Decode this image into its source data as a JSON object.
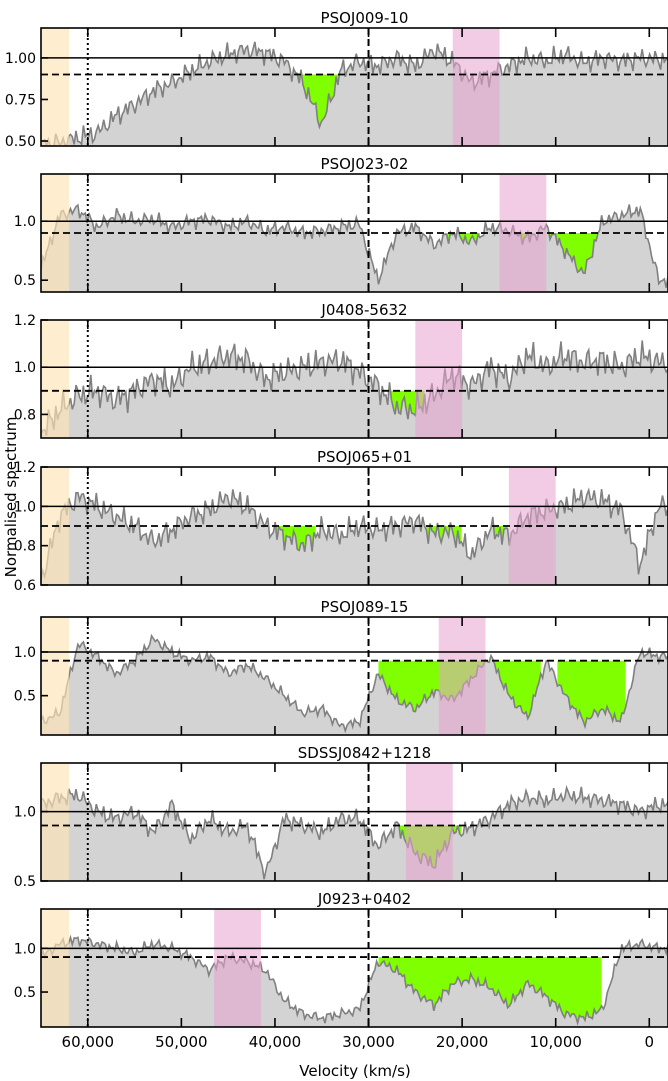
{
  "figure": {
    "ylabel": "Normalised spectrum",
    "xlabel": "Velocity (km/s)",
    "xlim": [
      65000,
      -2000
    ],
    "x_ticks": [
      60000,
      50000,
      40000,
      30000,
      20000,
      10000,
      0
    ],
    "x_tick_labels": [
      "60,000",
      "50,000",
      "40,000",
      "30,000",
      "20,000",
      "10,000",
      "0"
    ],
    "reference_lines": {
      "continuum": 1.0,
      "threshold": 0.9,
      "dashed_velocity": 30000,
      "dotted_velocity": 60000
    },
    "colors": {
      "spectrum_fill": "#d3d3d3",
      "spectrum_line": "#808080",
      "absorption": "#7fff00",
      "orange_band": "#ffe4b5",
      "pink_band": "#e7a3d0"
    }
  },
  "chart_data": [
    {
      "type": "area",
      "title": "PSOJ009-10",
      "ylim": [
        0.47,
        1.18
      ],
      "y_ticks": [
        0.5,
        0.75,
        1.0
      ],
      "y_tick_labels": [
        "0.50",
        "0.75",
        "1.00"
      ],
      "orange_band": [
        65000,
        62000
      ],
      "pink_band": [
        21000,
        16000
      ],
      "x": [
        65000,
        63000,
        61000,
        59000,
        57000,
        55000,
        53000,
        51000,
        49000,
        47000,
        45000,
        43000,
        41000,
        39000,
        37000,
        35000,
        33000,
        31000,
        29000,
        27000,
        25000,
        23000,
        21000,
        19000,
        17000,
        15000,
        13000,
        11000,
        9000,
        7000,
        5000,
        3000,
        1000,
        -1000
      ],
      "y": [
        0.47,
        0.49,
        0.52,
        0.55,
        0.65,
        0.72,
        0.8,
        0.85,
        0.92,
        0.98,
        1.02,
        1.05,
        1.03,
        0.98,
        0.85,
        0.6,
        0.92,
        0.98,
        0.95,
        1.0,
        0.95,
        1.05,
        0.98,
        0.85,
        0.9,
        0.95,
        1.0,
        0.98,
        1.02,
        0.97,
        1.0,
        0.98,
        1.0,
        0.99
      ],
      "absorption": [
        [
          38000,
          33000
        ]
      ]
    },
    {
      "type": "area",
      "title": "PSOJ023-02",
      "ylim": [
        0.4,
        1.4
      ],
      "y_ticks": [
        0.5,
        1.0
      ],
      "y_tick_labels": [
        "0.5",
        "1.0"
      ],
      "orange_band": [
        65000,
        62000
      ],
      "pink_band": [
        16000,
        11000
      ],
      "x": [
        65000,
        63000,
        61000,
        59000,
        57000,
        55000,
        53000,
        51000,
        49000,
        47000,
        45000,
        43000,
        41000,
        39000,
        37000,
        35000,
        33000,
        31000,
        29000,
        27000,
        25000,
        23000,
        21000,
        19000,
        17000,
        15000,
        13000,
        11000,
        9000,
        7000,
        5000,
        3000,
        1000,
        -1000
      ],
      "y": [
        0.6,
        1.05,
        1.1,
        0.95,
        1.05,
        1.0,
        1.02,
        0.95,
        1.0,
        1.02,
        0.95,
        1.0,
        0.92,
        0.95,
        0.9,
        0.92,
        0.95,
        0.98,
        0.5,
        0.9,
        0.95,
        0.8,
        0.9,
        0.82,
        0.95,
        0.92,
        0.85,
        0.95,
        0.75,
        0.55,
        1.0,
        1.05,
        1.1,
        0.5
      ],
      "absorption": [
        [
          22000,
          18000
        ],
        [
          16000,
          12000
        ],
        [
          11000,
          5000
        ]
      ]
    },
    {
      "type": "area",
      "title": "J0408-5632",
      "ylim": [
        0.7,
        1.2
      ],
      "y_ticks": [
        0.8,
        1.0,
        1.2
      ],
      "y_tick_labels": [
        "0.8",
        "1.0",
        "1.2"
      ],
      "orange_band": [
        65000,
        62000
      ],
      "pink_band": [
        25000,
        20000
      ],
      "x": [
        65000,
        63000,
        61000,
        59000,
        57000,
        55000,
        53000,
        51000,
        49000,
        47000,
        45000,
        43000,
        41000,
        39000,
        37000,
        35000,
        33000,
        31000,
        29000,
        27000,
        25000,
        23000,
        21000,
        19000,
        17000,
        15000,
        13000,
        11000,
        9000,
        7000,
        5000,
        3000,
        1000,
        -1000
      ],
      "y": [
        0.72,
        0.82,
        0.88,
        0.9,
        0.86,
        0.9,
        0.95,
        0.92,
        1.0,
        1.02,
        1.05,
        1.03,
        0.95,
        0.98,
        1.0,
        1.02,
        1.03,
        0.98,
        0.92,
        0.83,
        0.82,
        0.88,
        0.97,
        0.92,
        1.0,
        0.95,
        1.05,
        1.0,
        1.05,
        1.02,
        1.03,
        1.0,
        1.05,
        1.02
      ],
      "absorption": [
        [
          28000,
          24000
        ]
      ]
    },
    {
      "type": "area",
      "title": "PSOJ065+01",
      "ylim": [
        0.6,
        1.2
      ],
      "y_ticks": [
        0.6,
        0.8,
        1.0,
        1.2
      ],
      "y_tick_labels": [
        "0.6",
        "0.8",
        "1.0",
        "1.2"
      ],
      "orange_band": [
        65000,
        62000
      ],
      "pink_band": [
        15000,
        10000
      ],
      "x": [
        65000,
        63000,
        61000,
        59000,
        57000,
        55000,
        53000,
        51000,
        49000,
        47000,
        45000,
        43000,
        41000,
        39000,
        37000,
        35000,
        33000,
        31000,
        29000,
        27000,
        25000,
        23000,
        21000,
        19000,
        17000,
        15000,
        13000,
        11000,
        9000,
        7000,
        5000,
        3000,
        1000,
        -1000
      ],
      "y": [
        0.62,
        0.95,
        1.05,
        1.0,
        0.95,
        0.9,
        0.82,
        0.88,
        0.95,
        0.98,
        1.05,
        1.0,
        0.9,
        0.85,
        0.8,
        0.88,
        0.85,
        0.9,
        0.88,
        0.9,
        0.93,
        0.86,
        0.87,
        0.75,
        0.88,
        0.85,
        0.95,
        0.98,
        1.0,
        1.05,
        1.03,
        0.98,
        0.7,
        1.0
      ],
      "absorption": [
        [
          40000,
          35500
        ],
        [
          24000,
          20000
        ],
        [
          17000,
          15000
        ]
      ]
    },
    {
      "type": "area",
      "title": "PSOJ089-15",
      "ylim": [
        0.05,
        1.4
      ],
      "y_ticks": [
        0.5,
        1.0
      ],
      "y_tick_labels": [
        "0.5",
        "1.0"
      ],
      "orange_band": [
        65000,
        62000
      ],
      "pink_band": [
        22500,
        17500
      ],
      "x": [
        65000,
        63000,
        61000,
        59000,
        57000,
        55000,
        53000,
        51000,
        49000,
        47000,
        45000,
        43000,
        41000,
        39000,
        37000,
        35000,
        33000,
        31000,
        29000,
        27000,
        25000,
        23000,
        21000,
        19000,
        17000,
        15000,
        13000,
        11000,
        9000,
        7000,
        5000,
        3000,
        1000,
        -1000
      ],
      "y": [
        0.2,
        0.3,
        1.1,
        0.95,
        0.75,
        0.9,
        1.15,
        1.0,
        0.9,
        0.95,
        0.75,
        0.85,
        0.7,
        0.5,
        0.3,
        0.35,
        0.15,
        0.2,
        0.75,
        0.45,
        0.35,
        0.55,
        0.45,
        0.7,
        0.95,
        0.5,
        0.25,
        0.9,
        0.5,
        0.2,
        0.35,
        0.2,
        1.0,
        0.95
      ],
      "absorption": [
        [
          29000,
          11500
        ],
        [
          10000,
          2500
        ]
      ]
    },
    {
      "type": "area",
      "title": "SDSSJ0842+1218",
      "ylim": [
        0.5,
        1.35
      ],
      "y_ticks": [
        0.5,
        1.0
      ],
      "y_tick_labels": [
        "0.5",
        "1.0"
      ],
      "orange_band": [
        65000,
        62000
      ],
      "pink_band": [
        26000,
        21000
      ],
      "x": [
        65000,
        63000,
        61000,
        59000,
        57000,
        55000,
        53000,
        51000,
        49000,
        47000,
        45000,
        43000,
        41000,
        39000,
        37000,
        35000,
        33000,
        31000,
        29000,
        27000,
        25000,
        23000,
        21000,
        19000,
        17000,
        15000,
        13000,
        11000,
        9000,
        7000,
        5000,
        3000,
        1000,
        -1000
      ],
      "y": [
        1.05,
        1.1,
        1.12,
        1.0,
        0.95,
        1.0,
        0.85,
        1.05,
        0.8,
        0.95,
        0.85,
        0.9,
        0.55,
        0.95,
        0.9,
        0.85,
        0.95,
        0.95,
        0.75,
        0.9,
        0.7,
        0.62,
        0.85,
        0.88,
        0.95,
        1.05,
        1.1,
        1.08,
        1.12,
        1.1,
        1.08,
        1.05,
        1.0,
        1.05
      ],
      "absorption": [
        [
          27000,
          20000
        ]
      ]
    },
    {
      "type": "area",
      "title": "J0923+0402",
      "ylim": [
        0.1,
        1.45
      ],
      "y_ticks": [
        0.5,
        1.0
      ],
      "y_tick_labels": [
        "0.5",
        "1.0"
      ],
      "orange_band": [
        65000,
        62000
      ],
      "pink_band": [
        46500,
        41500
      ],
      "x": [
        65000,
        63000,
        61000,
        59000,
        57000,
        55000,
        53000,
        51000,
        49000,
        47000,
        45000,
        43000,
        41000,
        39000,
        37000,
        35000,
        33000,
        31000,
        29000,
        27000,
        25000,
        23000,
        21000,
        19000,
        17000,
        15000,
        13000,
        11000,
        9000,
        7000,
        5000,
        3000,
        1000,
        -1000
      ],
      "y": [
        0.9,
        1.05,
        1.1,
        1.05,
        1.0,
        0.95,
        1.05,
        1.0,
        0.9,
        0.75,
        0.9,
        0.85,
        0.75,
        0.4,
        0.25,
        0.2,
        0.25,
        0.3,
        0.85,
        0.75,
        0.5,
        0.35,
        0.6,
        0.65,
        0.55,
        0.35,
        0.6,
        0.45,
        0.25,
        0.2,
        0.3,
        1.0,
        1.05,
        1.0
      ],
      "absorption": [
        [
          29000,
          5000
        ]
      ]
    }
  ]
}
